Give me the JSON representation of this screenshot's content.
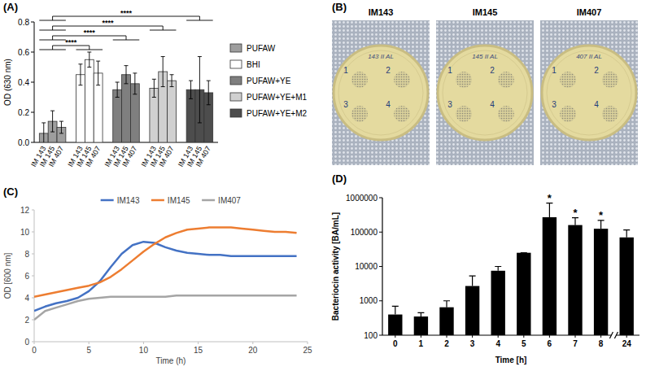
{
  "chart_data": [
    {
      "panel": "(A)",
      "type": "bar",
      "y_label": "OD (630 nm)",
      "categories": [
        "IM 143",
        "IM 145",
        "IM 407"
      ],
      "series": [
        {
          "name": "PUFAW",
          "color": "#9e9e9e",
          "values": [
            0.06,
            0.14,
            0.1
          ],
          "errors": [
            0.07,
            0.07,
            0.04
          ]
        },
        {
          "name": "BHI",
          "color": "#ffffff",
          "values": [
            0.45,
            0.55,
            0.46
          ],
          "errors": [
            0.07,
            0.05,
            0.08
          ]
        },
        {
          "name": "PUFAW+YE",
          "color": "#7f7f7f",
          "values": [
            0.35,
            0.45,
            0.39
          ],
          "errors": [
            0.05,
            0.06,
            0.07
          ]
        },
        {
          "name": "PUFAW+YE+M1",
          "color": "#d0d0d0",
          "values": [
            0.36,
            0.47,
            0.41
          ],
          "errors": [
            0.06,
            0.1,
            0.04
          ]
        },
        {
          "name": "PUFAW+YE+M2",
          "color": "#4d4d4d",
          "values": [
            0.35,
            0.35,
            0.33
          ],
          "errors": [
            0.06,
            0.22,
            0.08
          ]
        }
      ],
      "ylim": [
        0,
        0.8
      ],
      "yticks": [
        {
          "value": 0,
          "label": "0.0"
        },
        {
          "value": 0.2,
          "label": "0.2"
        },
        {
          "value": 0.4,
          "label": "0.4"
        },
        {
          "value": 0.6,
          "label": "0.6"
        },
        {
          "value": 0.8,
          "label": "0.8"
        }
      ],
      "legend": "right",
      "comparisons": [
        {
          "groups": [
            0,
            1
          ],
          "label": "****"
        },
        {
          "groups": [
            0,
            2
          ],
          "label": "****"
        },
        {
          "groups": [
            0,
            3
          ],
          "label": "****"
        },
        {
          "groups": [
            0,
            4
          ],
          "label": "****"
        }
      ]
    },
    {
      "panel": "(B)",
      "type": "image",
      "titles": [
        "IM143",
        "IM145",
        "IM407"
      ],
      "plate_marks": [
        "143 II AL",
        "145 II AL",
        "407 II AL"
      ],
      "spot_labels": [
        "1",
        "2",
        "3",
        "4"
      ]
    },
    {
      "panel": "(C)",
      "type": "line",
      "x_label": "Time (h)",
      "y_label": "OD [600 nm]",
      "x": [
        0,
        1,
        2,
        3,
        4,
        5,
        6,
        7,
        8,
        9,
        10,
        11,
        12,
        13,
        14,
        15,
        16,
        17,
        18,
        19,
        20,
        21,
        22,
        23,
        24
      ],
      "series": [
        {
          "name": "IM143",
          "color": "#4472c4",
          "values": [
            2.8,
            3.2,
            3.5,
            3.7,
            4.0,
            4.6,
            5.5,
            6.8,
            8.0,
            8.8,
            9.1,
            9.0,
            8.6,
            8.3,
            8.1,
            8.0,
            7.9,
            7.9,
            7.8,
            7.8,
            7.8,
            7.8,
            7.8,
            7.8,
            7.8
          ]
        },
        {
          "name": "IM145",
          "color": "#ed7d31",
          "values": [
            4.1,
            4.3,
            4.5,
            4.7,
            4.9,
            5.1,
            5.4,
            5.9,
            6.6,
            7.4,
            8.2,
            8.9,
            9.5,
            9.9,
            10.2,
            10.3,
            10.4,
            10.4,
            10.4,
            10.3,
            10.2,
            10.1,
            10.0,
            10.0,
            9.9
          ]
        },
        {
          "name": "IM407",
          "color": "#a5a5a5",
          "values": [
            2.0,
            2.8,
            3.1,
            3.4,
            3.7,
            3.9,
            4.0,
            4.1,
            4.1,
            4.1,
            4.1,
            4.1,
            4.1,
            4.2,
            4.2,
            4.2,
            4.2,
            4.2,
            4.2,
            4.2,
            4.2,
            4.2,
            4.2,
            4.2,
            4.2
          ]
        }
      ],
      "xlim": [
        0,
        25
      ],
      "ylim": [
        0,
        12
      ],
      "xticks": [
        0,
        5,
        10,
        15,
        20,
        25
      ],
      "yticks": [
        0,
        2,
        4,
        6,
        8,
        10,
        12
      ],
      "legend": "top"
    },
    {
      "panel": "(D)",
      "type": "bar",
      "x_label": "Time [h]",
      "y_label": "Bacteriocin activity [BA/mL]",
      "log": "y",
      "categories": [
        "0",
        "1",
        "2",
        "3",
        "4",
        "5",
        "6",
        "7",
        "8",
        "24"
      ],
      "values": [
        400,
        350,
        650,
        2700,
        7500,
        25000,
        270000,
        160000,
        125000,
        70000
      ],
      "errors": [
        300,
        100,
        350,
        2600,
        2500,
        0,
        430000,
        100000,
        95000,
        45000
      ],
      "significance": [
        null,
        null,
        null,
        null,
        null,
        null,
        "*",
        "*",
        "*",
        null
      ],
      "color": "#000000",
      "ylim": [
        100,
        1000000
      ],
      "yticks": [
        100,
        1000,
        10000,
        100000,
        1000000
      ]
    }
  ]
}
